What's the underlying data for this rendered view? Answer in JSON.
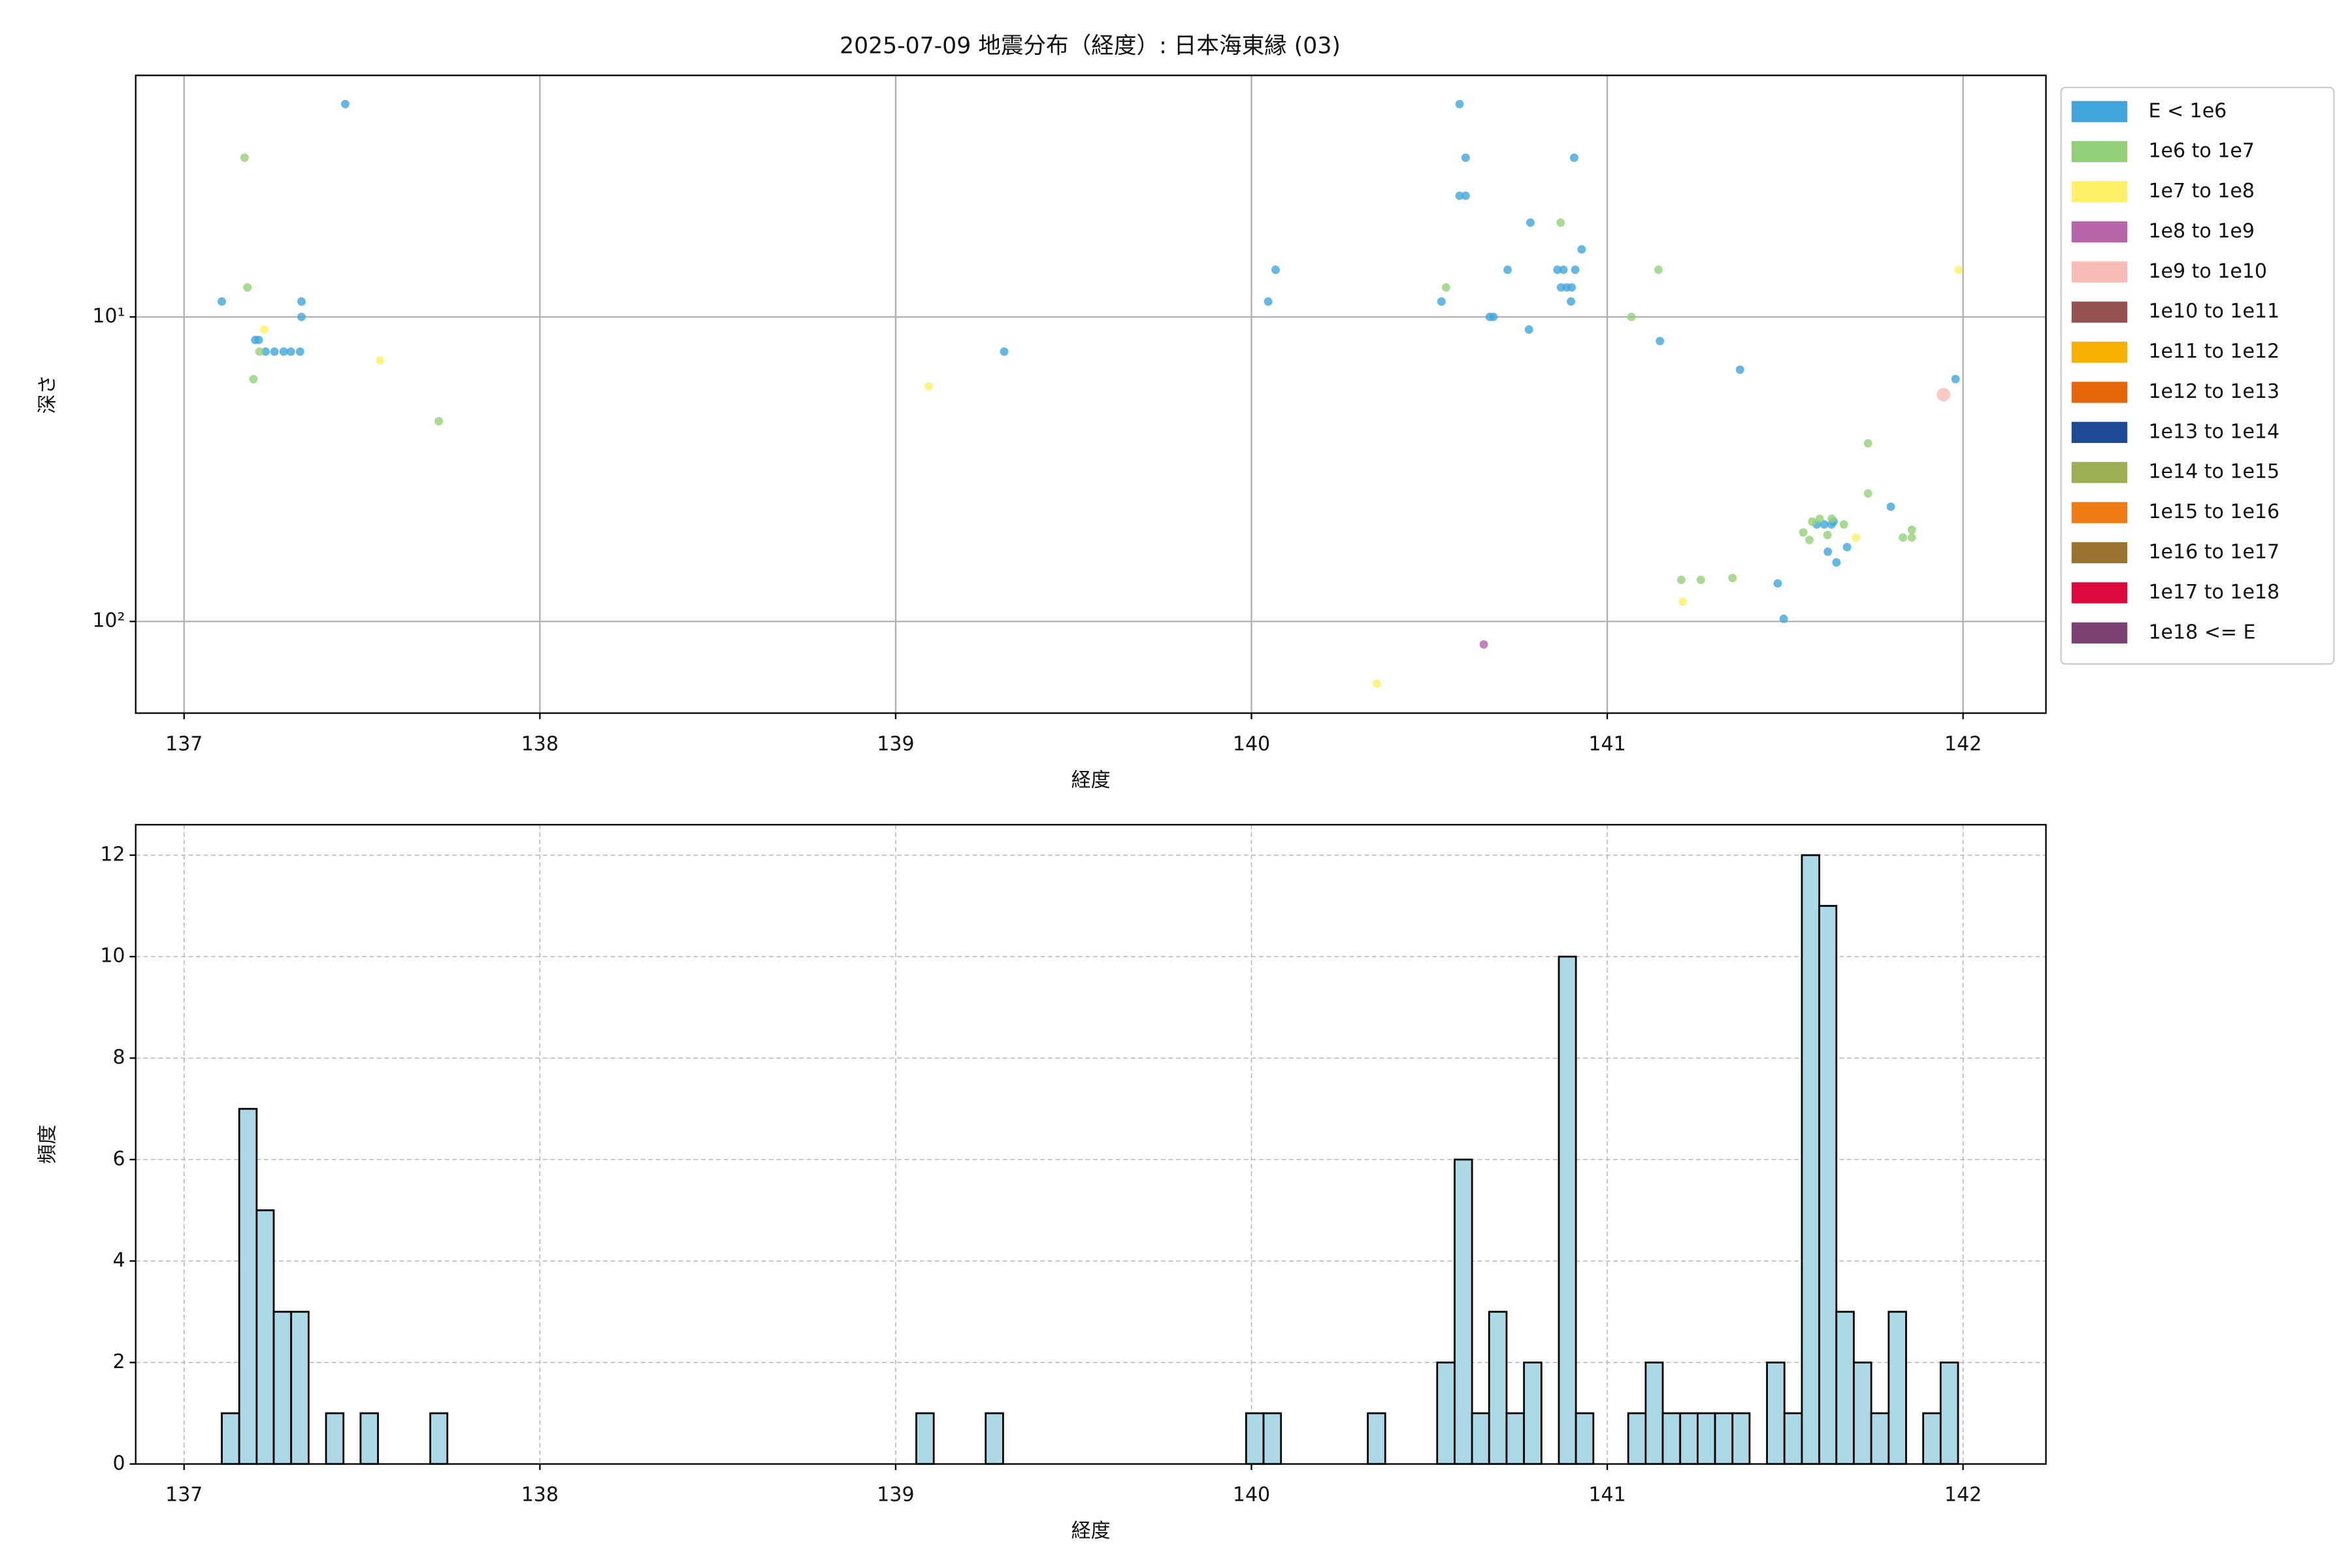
{
  "chart_data": [
    {
      "type": "scatter",
      "title": "2025-07-09 地震分布（経度）: 日本海東縁 (03)",
      "x_label": "経度",
      "y_label": "深さ",
      "xlim": [
        136.864,
        142.233
      ],
      "xticks": [
        137,
        138,
        139,
        140,
        141,
        142
      ],
      "ylim": [
        1.61,
        200
      ],
      "y_log": true,
      "y_inverted": true,
      "yticks": [
        {
          "value": 10,
          "label": "10¹"
        },
        {
          "value": 100,
          "label": "10²"
        }
      ],
      "grid": true,
      "legend": "outside-upper-right",
      "marker_alpha": 0.8,
      "series": [
        {
          "name": "E < 1e6",
          "color": "#41a5dc",
          "x": [
            137.453,
            137.106,
            137.2,
            137.21,
            137.229,
            137.254,
            137.28,
            137.3,
            137.326,
            137.33,
            137.33,
            139.305,
            140.068,
            140.047,
            140.534,
            140.585,
            140.602,
            140.585,
            140.602,
            140.72,
            140.67,
            140.68,
            140.78,
            140.784,
            140.86,
            140.877,
            140.87,
            140.886,
            140.9,
            140.91,
            140.907,
            140.928,
            140.898,
            141.148,
            141.373,
            141.979,
            141.797,
            141.479,
            141.496,
            141.589,
            141.61,
            141.63,
            141.62,
            141.644,
            141.674,
            141.636
          ],
          "values": [
            2.0,
            8.9,
            11.9,
            11.9,
            13,
            13,
            13,
            13,
            13,
            8.9,
            10,
            13,
            7,
            8.9,
            8.9,
            2.0,
            3.0,
            4.0,
            4.0,
            7,
            10,
            10,
            11,
            4.9,
            7,
            7,
            8,
            8,
            8,
            7,
            3.0,
            6,
            8.9,
            12,
            14.9,
            16,
            42,
            75,
            98,
            48,
            48,
            48,
            59,
            64,
            57,
            47
          ]
        },
        {
          "name": "1e6 to 1e7",
          "color": "#93cf78",
          "x": [
            137.17,
            137.178,
            137.195,
            137.212,
            137.716,
            140.547,
            140.869,
            141.144,
            141.068,
            141.208,
            141.263,
            141.352,
            141.551,
            141.568,
            141.576,
            141.597,
            141.619,
            141.631,
            141.665,
            141.733,
            141.733,
            141.831,
            141.856,
            141.856
          ],
          "values": [
            3.0,
            8,
            16,
            13,
            22,
            8,
            4.9,
            7,
            10,
            73,
            73,
            72,
            51,
            54,
            47,
            46,
            52,
            46,
            48,
            26,
            38,
            53,
            50,
            53
          ]
        },
        {
          "name": "1e7 to 1e8",
          "color": "#fff066",
          "x": [
            137.225,
            137.551,
            139.093,
            140.352,
            141.212,
            141.699,
            141.987
          ],
          "values": [
            11,
            13.9,
            16.9,
            160,
            86,
            53,
            7
          ]
        },
        {
          "name": "1e8 to 1e9",
          "color": "#b864a8",
          "x": [
            140.653
          ],
          "values": [
            119
          ]
        },
        {
          "name": "1e9 to 1e10",
          "color": "#f7bcb8",
          "x": [
            141.945
          ],
          "values": [
            18
          ]
        },
        {
          "name": "1e10 to 1e11",
          "color": "#955050",
          "x": [],
          "values": []
        },
        {
          "name": "1e11 to 1e12",
          "color": "#f5b000",
          "x": [],
          "values": []
        },
        {
          "name": "1e12 to 1e13",
          "color": "#e8660a",
          "x": [],
          "values": []
        },
        {
          "name": "1e13 to 1e14",
          "color": "#1c4b93",
          "x": [],
          "values": []
        },
        {
          "name": "1e14 to 1e15",
          "color": "#9caf55",
          "x": [],
          "values": []
        },
        {
          "name": "1e15 to 1e16",
          "color": "#f07c14",
          "x": [],
          "values": []
        },
        {
          "name": "1e16 to 1e17",
          "color": "#9a7230",
          "x": [],
          "values": []
        },
        {
          "name": "1e17 to 1e18",
          "color": "#dc0a3c",
          "x": [],
          "values": []
        },
        {
          "name": "1e18 <= E",
          "color": "#7a4072",
          "x": [],
          "values": []
        }
      ]
    },
    {
      "type": "histogram",
      "x_label": "経度",
      "y_label": "頻度",
      "color": "#add8e6",
      "edge_color": "#000000",
      "xlim": [
        136.864,
        142.233
      ],
      "xticks": [
        137,
        138,
        139,
        140,
        141,
        142
      ],
      "ylim": [
        0,
        12.6
      ],
      "yticks": [
        0,
        2,
        4,
        6,
        8,
        10,
        12
      ],
      "grid": true,
      "grid_style": "dashed",
      "bins": [
        137.106,
        137.155,
        137.204,
        137.252,
        137.301,
        137.35,
        137.399,
        137.448,
        137.496,
        137.545,
        137.594,
        137.643,
        137.692,
        137.74,
        137.789,
        137.838,
        137.887,
        137.936,
        137.984,
        138.033,
        138.082,
        138.131,
        138.18,
        138.228,
        138.277,
        138.326,
        138.375,
        138.424,
        138.472,
        138.521,
        138.57,
        138.619,
        138.668,
        138.716,
        138.765,
        138.814,
        138.863,
        138.912,
        138.96,
        139.009,
        139.058,
        139.107,
        139.156,
        139.204,
        139.253,
        139.302,
        139.351,
        139.4,
        139.448,
        139.497,
        139.546,
        139.595,
        139.644,
        139.692,
        139.741,
        139.79,
        139.839,
        139.888,
        139.936,
        139.985,
        140.034,
        140.083,
        140.132,
        140.18,
        140.229,
        140.278,
        140.327,
        140.376,
        140.424,
        140.473,
        140.522,
        140.571,
        140.62,
        140.668,
        140.717,
        140.766,
        140.815,
        140.864,
        140.912,
        140.961,
        141.01,
        141.059,
        141.108,
        141.156,
        141.205,
        141.254,
        141.303,
        141.352,
        141.4,
        141.449,
        141.498,
        141.547,
        141.596,
        141.644,
        141.693,
        141.742,
        141.791,
        141.84,
        141.888,
        141.937,
        141.986
      ],
      "values": [
        1,
        7,
        5,
        3,
        3,
        0,
        1,
        0,
        1,
        0,
        0,
        0,
        1,
        0,
        0,
        0,
        0,
        0,
        0,
        0,
        0,
        0,
        0,
        0,
        0,
        0,
        0,
        0,
        0,
        0,
        0,
        0,
        0,
        0,
        0,
        0,
        0,
        0,
        0,
        0,
        1,
        0,
        0,
        0,
        1,
        0,
        0,
        0,
        0,
        0,
        0,
        0,
        0,
        0,
        0,
        0,
        0,
        0,
        0,
        1,
        1,
        0,
        0,
        0,
        0,
        0,
        1,
        0,
        0,
        0,
        2,
        6,
        1,
        3,
        1,
        2,
        0,
        10,
        1,
        0,
        0,
        1,
        2,
        1,
        1,
        1,
        1,
        1,
        0,
        2,
        1,
        12,
        11,
        3,
        2,
        1,
        3,
        0,
        1,
        2
      ]
    }
  ]
}
